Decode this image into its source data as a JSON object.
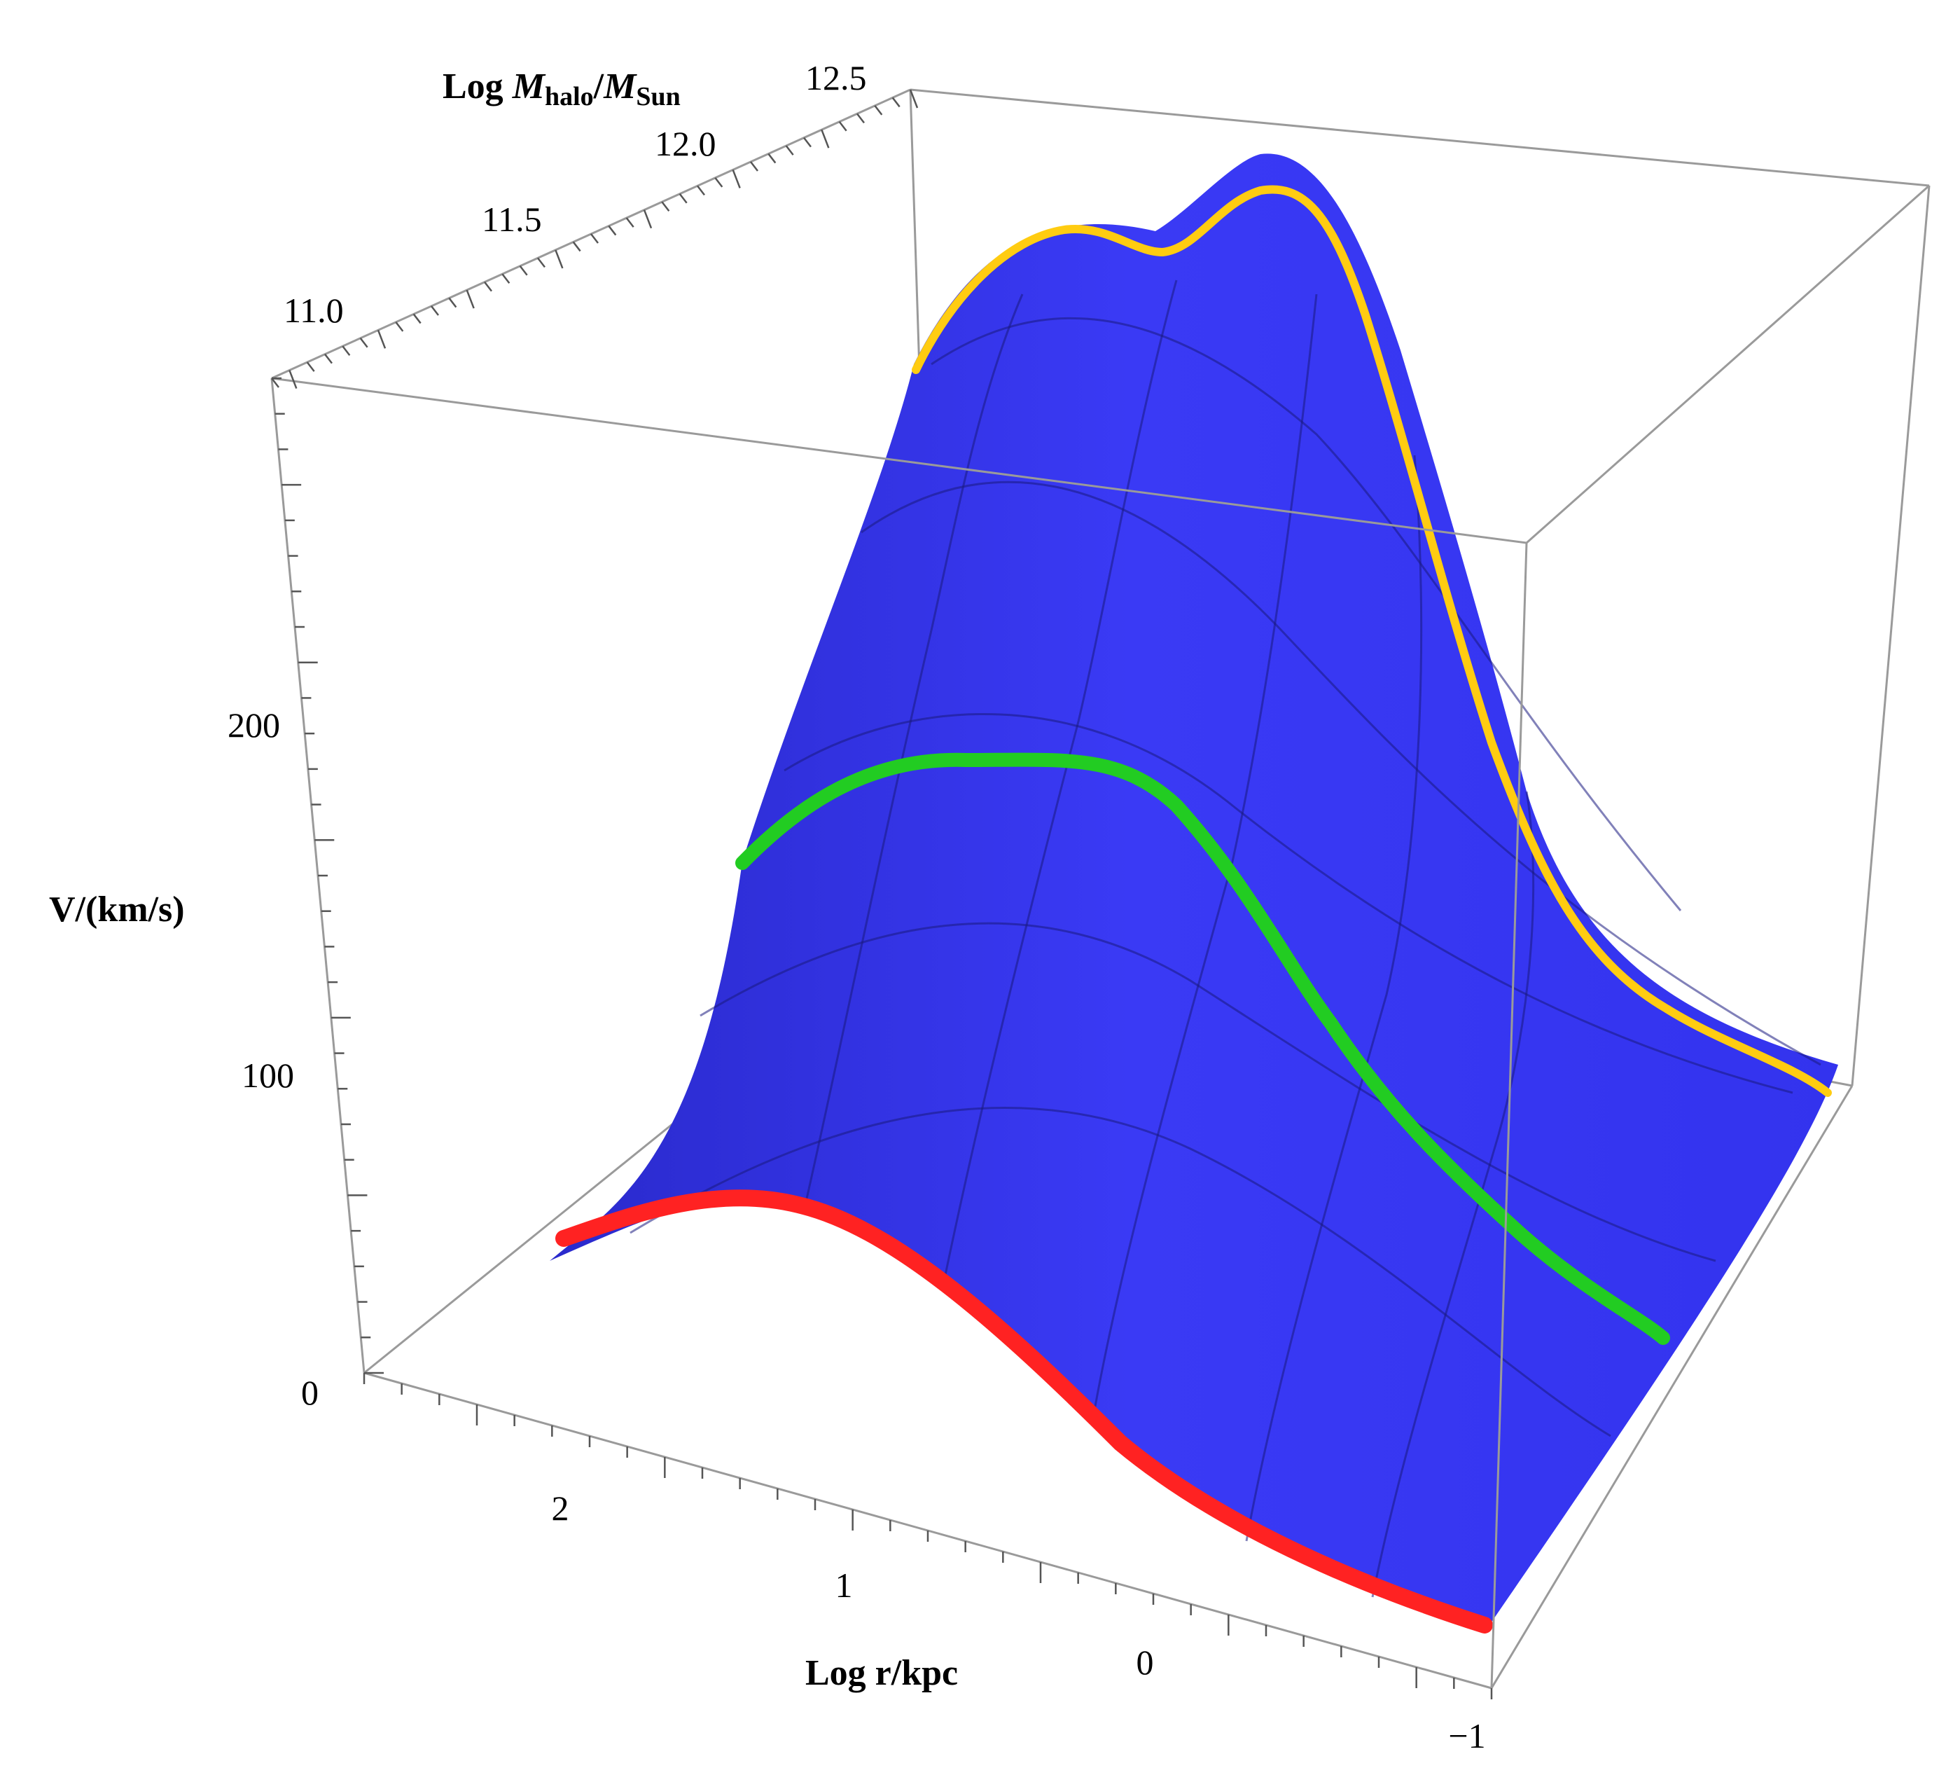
{
  "chart_data": {
    "type": "surface3d",
    "title": "",
    "axes": {
      "x": {
        "label": "Log r/kpc",
        "range": [
          -1,
          2.3
        ],
        "ticks": [
          "2",
          "1",
          "0",
          "−1"
        ]
      },
      "y": {
        "label_prefix": "Log ",
        "label_var1": "M",
        "label_sub1": "halo",
        "label_slash": "/",
        "label_var2": "M",
        "label_sub2": "Sun",
        "range": [
          10.8,
          12.7
        ],
        "ticks": [
          "11.0",
          "11.5",
          "12.0",
          "12.5"
        ]
      },
      "z": {
        "label": "V/(km/s)",
        "range": [
          0,
          300
        ],
        "ticks": [
          "0",
          "100",
          "200"
        ]
      }
    },
    "surface_color": "#3333ee",
    "highlighted_curves": [
      {
        "logM": 10.9,
        "color": "#ff2222",
        "peak_v": 60
      },
      {
        "logM": 11.6,
        "color": "#22cc22",
        "peak_v": 185
      },
      {
        "logM": 12.5,
        "color": "#ffcc11",
        "peak_v": 290
      }
    ]
  }
}
